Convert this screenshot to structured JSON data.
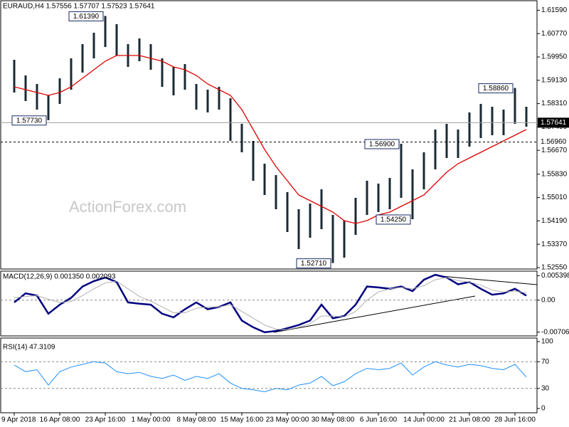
{
  "chart_data": [
    {
      "type": "hl_bar",
      "title": "EURAUD,H4  1.57556 1.57707 1.57523 1.57641",
      "watermark": "ActionForex.com",
      "categories": [
        "9 Apr 2018",
        null,
        null,
        null,
        "16 Apr 08:00",
        null,
        null,
        null,
        "23 Apr 16:00",
        null,
        null,
        null,
        "1 May 00:00",
        null,
        null,
        null,
        "8 May 08:00",
        null,
        null,
        null,
        "15 May 16:00",
        null,
        null,
        null,
        "23 May 00:00",
        null,
        null,
        null,
        "30 May 08:00",
        null,
        null,
        null,
        "6 Jun 16:00",
        null,
        null,
        null,
        "14 Jun 00:00",
        null,
        null,
        null,
        "21 Jun 08:00",
        null,
        null,
        null,
        "28 Jun 16:00",
        null
      ],
      "high": [
        1.5985,
        1.593,
        1.59,
        1.586,
        1.592,
        1.599,
        1.604,
        1.608,
        1.6139,
        1.611,
        1.604,
        1.606,
        1.604,
        1.599,
        1.596,
        1.597,
        1.59,
        1.588,
        1.589,
        1.585,
        1.576,
        1.57,
        1.562,
        1.558,
        1.552,
        1.546,
        1.548,
        1.553,
        1.544,
        1.542,
        1.55,
        1.556,
        1.555,
        1.557,
        1.569,
        1.56,
        1.566,
        1.574,
        1.576,
        1.574,
        1.58,
        1.583,
        1.582,
        1.581,
        1.5886,
        1.582
      ],
      "low": [
        1.587,
        1.584,
        1.581,
        1.5773,
        1.583,
        1.588,
        1.594,
        1.599,
        1.603,
        1.6,
        1.596,
        1.598,
        1.595,
        1.589,
        1.586,
        1.588,
        1.581,
        1.58,
        1.581,
        1.57,
        1.566,
        1.556,
        1.551,
        1.546,
        1.538,
        1.532,
        1.536,
        1.539,
        1.5271,
        1.529,
        1.537,
        1.544,
        1.545,
        1.546,
        1.55,
        1.5425,
        1.553,
        1.56,
        1.564,
        1.564,
        1.568,
        1.571,
        1.572,
        1.572,
        1.576,
        1.575
      ],
      "color": "#1a2a33",
      "series": [
        {
          "color": "#e00000",
          "values": [
            1.589,
            1.588,
            1.587,
            1.586,
            1.587,
            1.589,
            1.592,
            1.595,
            1.598,
            1.6,
            1.6,
            1.6,
            1.599,
            1.598,
            1.596,
            1.595,
            1.593,
            1.59,
            1.588,
            1.586,
            1.581,
            1.574,
            1.567,
            1.561,
            1.556,
            1.551,
            1.549,
            1.547,
            1.545,
            1.542,
            1.541,
            1.542,
            1.544,
            1.545,
            1.547,
            1.549,
            1.551,
            1.555,
            1.559,
            1.562,
            1.564,
            1.566,
            1.568,
            1.57,
            1.572,
            1.574
          ]
        }
      ],
      "levels": [
        {
          "value": 1.57641,
          "label": "1.57641",
          "style": "solid"
        },
        {
          "value": 1.5696,
          "label": "1.56960",
          "style": "dashed"
        }
      ],
      "annotations": [
        {
          "index": 8,
          "value": 1.6139,
          "label": "1.61390"
        },
        {
          "index": 3,
          "value": 1.5773,
          "label": "1.57730"
        },
        {
          "index": 44,
          "value": 1.5886,
          "label": "1.58860"
        },
        {
          "index": 34,
          "value": 1.569,
          "label": "1.56900"
        },
        {
          "index": 35,
          "value": 1.5425,
          "label": "1.54250"
        },
        {
          "index": 28,
          "value": 1.5271,
          "label": "1.52710"
        }
      ],
      "ylim": [
        1.525,
        1.617
      ],
      "yticks": [
        {
          "value": 1.6159,
          "label": "1.61590"
        },
        {
          "value": 1.6077,
          "label": "1.60770"
        },
        {
          "value": 1.5995,
          "label": "1.59950"
        },
        {
          "value": 1.5913,
          "label": "1.59130"
        },
        {
          "value": 1.5831,
          "label": "1.58310"
        },
        {
          "value": 1.5749,
          "label": "1.57490"
        },
        {
          "value": 1.5667,
          "label": "1.56670"
        },
        {
          "value": 1.5583,
          "label": "1.55830"
        },
        {
          "value": 1.5501,
          "label": "1.55010"
        },
        {
          "value": 1.5419,
          "label": "1.54190"
        },
        {
          "value": 1.5337,
          "label": "1.53370"
        },
        {
          "value": 1.5255,
          "label": "1.52550"
        }
      ],
      "grid": false
    },
    {
      "type": "line",
      "title": "MACD(12,26,9) 0.001350 0.002093",
      "series": [
        {
          "color": "#000080",
          "width": 2.5,
          "values": [
            -0.0005,
            0.0015,
            0.001,
            -0.003,
            -0.001,
            0.0005,
            0.003,
            0.0042,
            0.005,
            0.004,
            -0.0005,
            -0.0008,
            -0.001,
            -0.003,
            -0.0038,
            -0.002,
            -0.0005,
            -0.002,
            -0.0015,
            -0.0005,
            -0.0045,
            -0.006,
            -0.0071,
            -0.0068,
            -0.0062,
            -0.0055,
            -0.0045,
            -0.001,
            -0.004,
            -0.0035,
            -0.001,
            0.003,
            0.0028,
            0.0025,
            0.003,
            0.002,
            0.0045,
            0.0056,
            0.005,
            0.0035,
            0.004,
            0.0025,
            0.0012,
            0.0015,
            0.0025,
            0.001
          ]
        },
        {
          "color": "#b0b0b0",
          "width": 1,
          "values": [
            0.0005,
            0.0008,
            0.001,
            0.0002,
            -0.0005,
            -0.0003,
            0.001,
            0.0025,
            0.0038,
            0.0042,
            0.0025,
            0.0008,
            -0.0002,
            -0.0015,
            -0.0028,
            -0.0028,
            -0.0018,
            -0.0015,
            -0.0015,
            -0.001,
            -0.0025,
            -0.004,
            -0.0055,
            -0.0064,
            -0.0065,
            -0.006,
            -0.0052,
            -0.0035,
            -0.0035,
            -0.0037,
            -0.0025,
            0.0,
            0.0018,
            0.0025,
            0.0028,
            0.0025,
            0.0032,
            0.0045,
            0.005,
            0.0043,
            0.004,
            0.0033,
            0.0022,
            0.0018,
            0.002,
            0.0016
          ]
        }
      ],
      "ylim": [
        -0.0079,
        0.0064
      ],
      "yticks": [
        0.005398,
        {
          "value": 0,
          "label": "0.00"
        },
        -0.007064
      ],
      "grid": true
    },
    {
      "type": "line",
      "title": "RSI(14) 47.3109",
      "series": [
        {
          "color": "#1e90ff",
          "width": 1,
          "values": [
            65,
            55,
            58,
            35,
            55,
            62,
            66,
            70,
            68,
            55,
            52,
            54,
            48,
            45,
            50,
            42,
            48,
            45,
            52,
            38,
            30,
            28,
            25,
            30,
            28,
            35,
            38,
            48,
            34,
            40,
            52,
            60,
            58,
            60,
            68,
            50,
            62,
            70,
            65,
            62,
            66,
            64,
            60,
            58,
            66,
            47
          ]
        }
      ],
      "ylim": [
        0,
        100
      ],
      "yticks": [
        100,
        70,
        30,
        0
      ],
      "grid": true
    }
  ]
}
